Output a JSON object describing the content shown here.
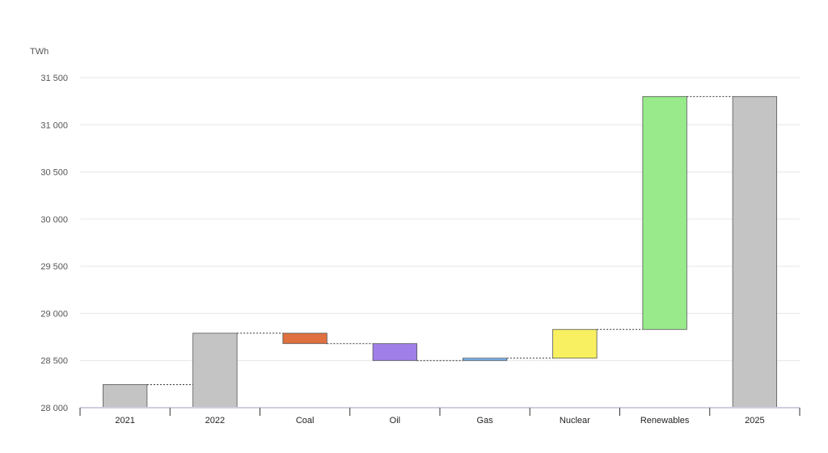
{
  "chart_data": {
    "type": "bar",
    "subtype": "waterfall",
    "ylabel": "TWh",
    "ylim": [
      28000,
      31500
    ],
    "yticks": [
      28000,
      28500,
      29000,
      29500,
      30000,
      30500,
      31000,
      31500
    ],
    "ytick_labels": [
      "28 000",
      "28 500",
      "29 000",
      "29 500",
      "30 000",
      "30 500",
      "31 000",
      "31 500"
    ],
    "grid": true,
    "legend": "none",
    "categories": [
      "2021",
      "2022",
      "Coal",
      "Oil",
      "Gas",
      "Nuclear",
      "Renewables",
      "2025"
    ],
    "bars": [
      {
        "label": "2021",
        "kind": "total",
        "start": 28000,
        "end": 28245,
        "color": "#c4c4c4"
      },
      {
        "label": "2022",
        "kind": "total",
        "start": 28000,
        "end": 28790,
        "color": "#c4c4c4"
      },
      {
        "label": "Coal",
        "kind": "change",
        "start": 28790,
        "end": 28680,
        "color": "#e07040"
      },
      {
        "label": "Oil",
        "kind": "change",
        "start": 28680,
        "end": 28500,
        "color": "#a080e8"
      },
      {
        "label": "Gas",
        "kind": "change",
        "start": 28500,
        "end": 28525,
        "color": "#78b4f0"
      },
      {
        "label": "Nuclear",
        "kind": "change",
        "start": 28525,
        "end": 28830,
        "color": "#f8f060"
      },
      {
        "label": "Renewables",
        "kind": "change",
        "start": 28830,
        "end": 31300,
        "color": "#98ea8a"
      },
      {
        "label": "2025",
        "kind": "total",
        "start": 28000,
        "end": 31300,
        "color": "#c4c4c4"
      }
    ]
  }
}
